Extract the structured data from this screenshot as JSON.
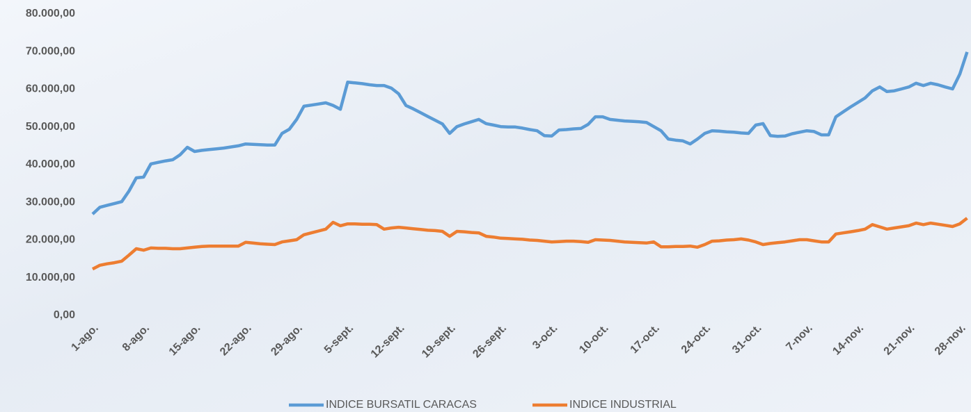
{
  "chart_data": {
    "type": "line",
    "categories": [
      "1-ago.",
      null,
      null,
      null,
      null,
      null,
      null,
      "8-ago.",
      null,
      null,
      null,
      null,
      null,
      null,
      "15-ago.",
      null,
      null,
      null,
      null,
      null,
      null,
      "22-ago.",
      null,
      null,
      null,
      null,
      null,
      null,
      "29-ago.",
      null,
      null,
      null,
      null,
      null,
      null,
      "5-sept.",
      null,
      null,
      null,
      null,
      null,
      null,
      "12-sept.",
      null,
      null,
      null,
      null,
      null,
      null,
      "19-sept.",
      null,
      null,
      null,
      null,
      null,
      null,
      "26-sept.",
      null,
      null,
      null,
      null,
      null,
      null,
      "3-oct.",
      null,
      null,
      null,
      null,
      null,
      null,
      "10-oct.",
      null,
      null,
      null,
      null,
      null,
      null,
      "17-oct.",
      null,
      null,
      null,
      null,
      null,
      null,
      "24-oct.",
      null,
      null,
      null,
      null,
      null,
      null,
      "31-oct.",
      null,
      null,
      null,
      null,
      null,
      null,
      "7-nov.",
      null,
      null,
      null,
      null,
      null,
      null,
      "14-nov.",
      null,
      null,
      null,
      null,
      null,
      null,
      "21-nov.",
      null,
      null,
      null,
      null,
      null,
      null,
      "28-nov.",
      null
    ],
    "series": [
      {
        "name": "INDICE BURSATIL CARACAS",
        "color": "#5b9bd5",
        "values": [
          26900,
          28700,
          29200,
          29700,
          30200,
          33000,
          36500,
          36700,
          40200,
          40600,
          41000,
          41300,
          42600,
          44600,
          43500,
          43800,
          44000,
          44200,
          44400,
          44700,
          45000,
          45500,
          45400,
          45300,
          45200,
          45200,
          48300,
          49400,
          52000,
          55500,
          55800,
          56100,
          56400,
          55700,
          54700,
          61900,
          61700,
          61500,
          61200,
          61000,
          61000,
          60300,
          58800,
          55700,
          54800,
          53800,
          52800,
          51800,
          50800,
          48300,
          50100,
          50800,
          51400,
          52000,
          50900,
          50500,
          50100,
          50000,
          50000,
          49700,
          49300,
          49000,
          47700,
          47600,
          49200,
          49300,
          49500,
          49600,
          50700,
          52700,
          52700,
          52000,
          51800,
          51600,
          51500,
          51400,
          51200,
          50100,
          49000,
          46800,
          46500,
          46300,
          45500,
          46800,
          48300,
          49000,
          48900,
          48700,
          48600,
          48400,
          48300,
          50500,
          50900,
          47700,
          47500,
          47600,
          48200,
          48600,
          49000,
          48800,
          47900,
          47900,
          52700,
          54000,
          55300,
          56500,
          57700,
          59600,
          60600,
          59400,
          59600,
          60100,
          60600,
          61600,
          61000,
          61600,
          61200,
          60600,
          60100,
          64000,
          69900
        ]
      },
      {
        "name": "INDICE INDUSTRIAL",
        "color": "#ed7d31",
        "values": [
          12300,
          13300,
          13700,
          14000,
          14400,
          16000,
          17700,
          17300,
          17900,
          17800,
          17800,
          17700,
          17700,
          17900,
          18100,
          18300,
          18400,
          18400,
          18400,
          18400,
          18400,
          19400,
          19200,
          19000,
          18900,
          18800,
          19500,
          19800,
          20100,
          21400,
          21900,
          22400,
          22900,
          24700,
          23800,
          24300,
          24300,
          24200,
          24200,
          24100,
          22900,
          23200,
          23400,
          23200,
          23000,
          22800,
          22600,
          22500,
          22300,
          21000,
          22300,
          22200,
          22000,
          21900,
          21000,
          20800,
          20500,
          20400,
          20300,
          20200,
          20000,
          19900,
          19700,
          19500,
          19600,
          19700,
          19700,
          19600,
          19400,
          20100,
          20000,
          19900,
          19700,
          19500,
          19400,
          19300,
          19200,
          19500,
          18200,
          18200,
          18300,
          18300,
          18400,
          18100,
          18800,
          19700,
          19800,
          20000,
          20100,
          20300,
          20000,
          19500,
          18800,
          19100,
          19300,
          19500,
          19800,
          20100,
          20100,
          19800,
          19500,
          19500,
          21600,
          21900,
          22200,
          22500,
          22900,
          24100,
          23500,
          22900,
          23200,
          23500,
          23800,
          24500,
          24100,
          24500,
          24200,
          23900,
          23600,
          24300,
          25800
        ]
      }
    ],
    "ylim": [
      0,
      80000
    ],
    "yticks": [
      {
        "value": 0,
        "label": "0,00"
      },
      {
        "value": 10000,
        "label": "10.000,00"
      },
      {
        "value": 20000,
        "label": "20.000,00"
      },
      {
        "value": 30000,
        "label": "30.000,00"
      },
      {
        "value": 40000,
        "label": "40.000,00"
      },
      {
        "value": 50000,
        "label": "50.000,00"
      },
      {
        "value": 60000,
        "label": "60.000,00"
      },
      {
        "value": 70000,
        "label": "70.000,00"
      },
      {
        "value": 80000,
        "label": "80.000,00"
      }
    ],
    "grid": false,
    "legend": "bottom"
  }
}
